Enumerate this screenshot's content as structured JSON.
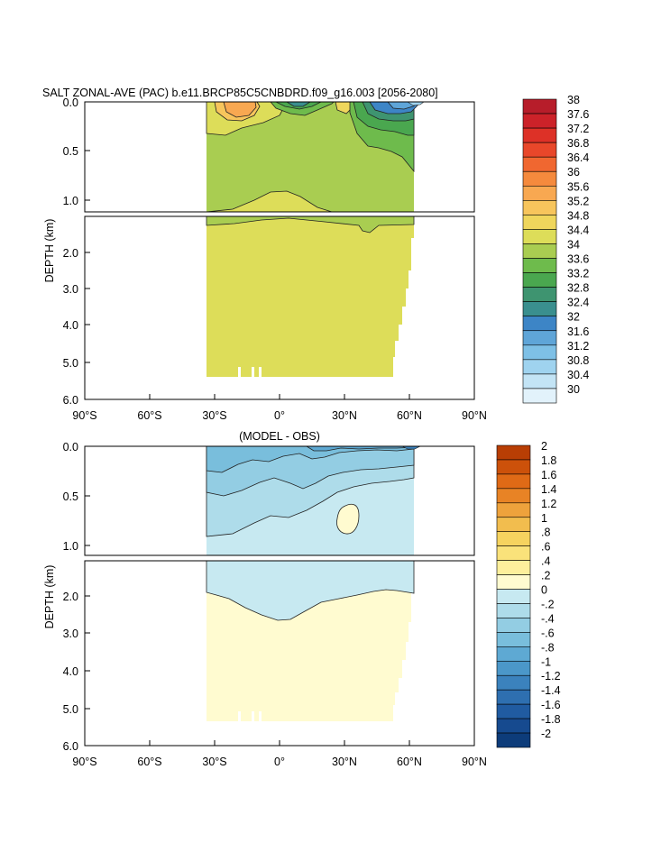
{
  "chart_data": [
    {
      "type": "heatmap",
      "title": "SALT ZONAL-AVE (PAC) b.e11.BRCP85C5CNBDRD.f09_g16.003 [2056-2080]",
      "subtitle": "",
      "xlabel": "",
      "ylabel": "DEPTH (km)",
      "x_ticks": [
        "90°S",
        "60°S",
        "30°S",
        "0°",
        "30°N",
        "60°N",
        "90°N"
      ],
      "x_range": [
        -90,
        90
      ],
      "y_upper_ticks": [
        "0.0",
        "0.5",
        "1.0"
      ],
      "y_upper_range": [
        0,
        1.1
      ],
      "y_lower_ticks": [
        "2.0",
        "3.0",
        "4.0",
        "5.0",
        "6.0"
      ],
      "y_lower_range": [
        1.1,
        6.0
      ],
      "data_lat_range": [
        -34,
        62
      ],
      "colorbar_levels": [
        "38",
        "37.6",
        "37.2",
        "36.8",
        "36.4",
        "36",
        "35.6",
        "35.2",
        "34.8",
        "34.4",
        "34",
        "33.6",
        "33.2",
        "32.8",
        "32.4",
        "32",
        "31.6",
        "31.2",
        "30.8",
        "30.4",
        "30"
      ],
      "colorbar_colors": [
        "#b71d2a",
        "#cc2229",
        "#dd3127",
        "#e8472a",
        "#f06730",
        "#f58a3d",
        "#f8a851",
        "#f7c55c",
        "#efd65c",
        "#dddd59",
        "#a9cd51",
        "#6ebb4c",
        "#4aa74f",
        "#3e9470",
        "#3a8f8e",
        "#3d85c6",
        "#5fa5d8",
        "#7ec0e6",
        "#9fd3ef",
        "#c3e4f5",
        "#e2f2fb"
      ],
      "dominant_deep_value_range": "34.4-34.8",
      "dominant_upper_value_range": "34-34.4"
    },
    {
      "type": "heatmap",
      "title": "(MODEL - OBS)",
      "xlabel": "",
      "ylabel": "DEPTH (km)",
      "x_ticks": [
        "90°S",
        "60°S",
        "30°S",
        "0°",
        "30°N",
        "60°N",
        "90°N"
      ],
      "x_range": [
        -90,
        90
      ],
      "y_upper_ticks": [
        "0.0",
        "0.5",
        "1.0"
      ],
      "y_upper_range": [
        0,
        1.1
      ],
      "y_lower_ticks": [
        "2.0",
        "3.0",
        "4.0",
        "5.0",
        "6.0"
      ],
      "y_lower_range": [
        1.1,
        6.0
      ],
      "data_lat_range": [
        -34,
        62
      ],
      "colorbar_levels": [
        "2",
        "1.8",
        "1.6",
        "1.4",
        "1.2",
        "1",
        ".8",
        ".6",
        ".4",
        ".2",
        "0",
        "-.2",
        "-.4",
        "-.6",
        "-.8",
        "-1",
        "-1.2",
        "-1.4",
        "-1.6",
        "-1.8",
        "-2"
      ],
      "colorbar_colors": [
        "#b83e04",
        "#cc510a",
        "#df6a16",
        "#e88325",
        "#eea23c",
        "#f2bd4e",
        "#f6d35f",
        "#fae27a",
        "#fdef9c",
        "#fffbd0",
        "#c7e9f1",
        "#aedcea",
        "#93cde3",
        "#79bedc",
        "#5ea9d3",
        "#4b97c9",
        "#3b82bd",
        "#2e6fb0",
        "#205ba1",
        "#164a8f",
        "#0d3c7a"
      ],
      "dominant_deep_value_range": "0-.2",
      "dominant_upper_value_range": "-.2-0"
    }
  ]
}
